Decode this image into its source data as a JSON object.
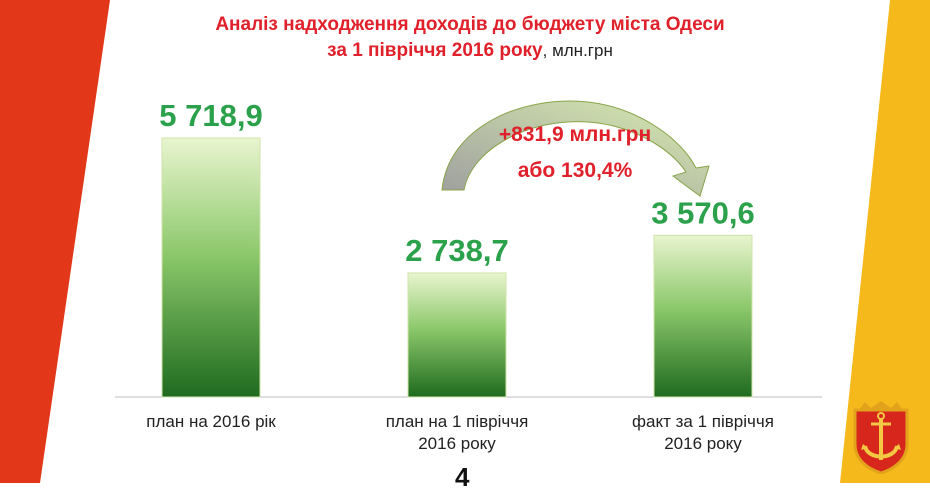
{
  "title_line1": "Аналіз надходження доходів до бюджету міста Одеси",
  "title_line2": "за 1 півріччя 2016 року",
  "title_unit": ", млн.грн",
  "page_number": "4",
  "annotation": {
    "line1": "+831,9 млн.грн",
    "line2": "або 130,4%"
  },
  "colors": {
    "title": "#e0202a",
    "value_label": "#2aa14a",
    "bar_light": "#e9f5cf",
    "bar_dark": "#1f6b1f",
    "annotation": "#e0202a",
    "left_band": "#e23718",
    "right_band": "#f6b91b"
  },
  "chart_data": {
    "type": "bar",
    "categories": [
      [
        "план на 2016 рік"
      ],
      [
        "план на 1 півріччя",
        "2016 року"
      ],
      [
        "факт за 1 півріччя",
        "2016 року"
      ]
    ],
    "values": [
      5718.9,
      2738.7,
      3570.6
    ],
    "value_labels": [
      "5 718,9",
      "2 738,7",
      "3 570,6"
    ],
    "ylim": [
      0,
      5718.9
    ],
    "grid": false,
    "legend": "none"
  }
}
